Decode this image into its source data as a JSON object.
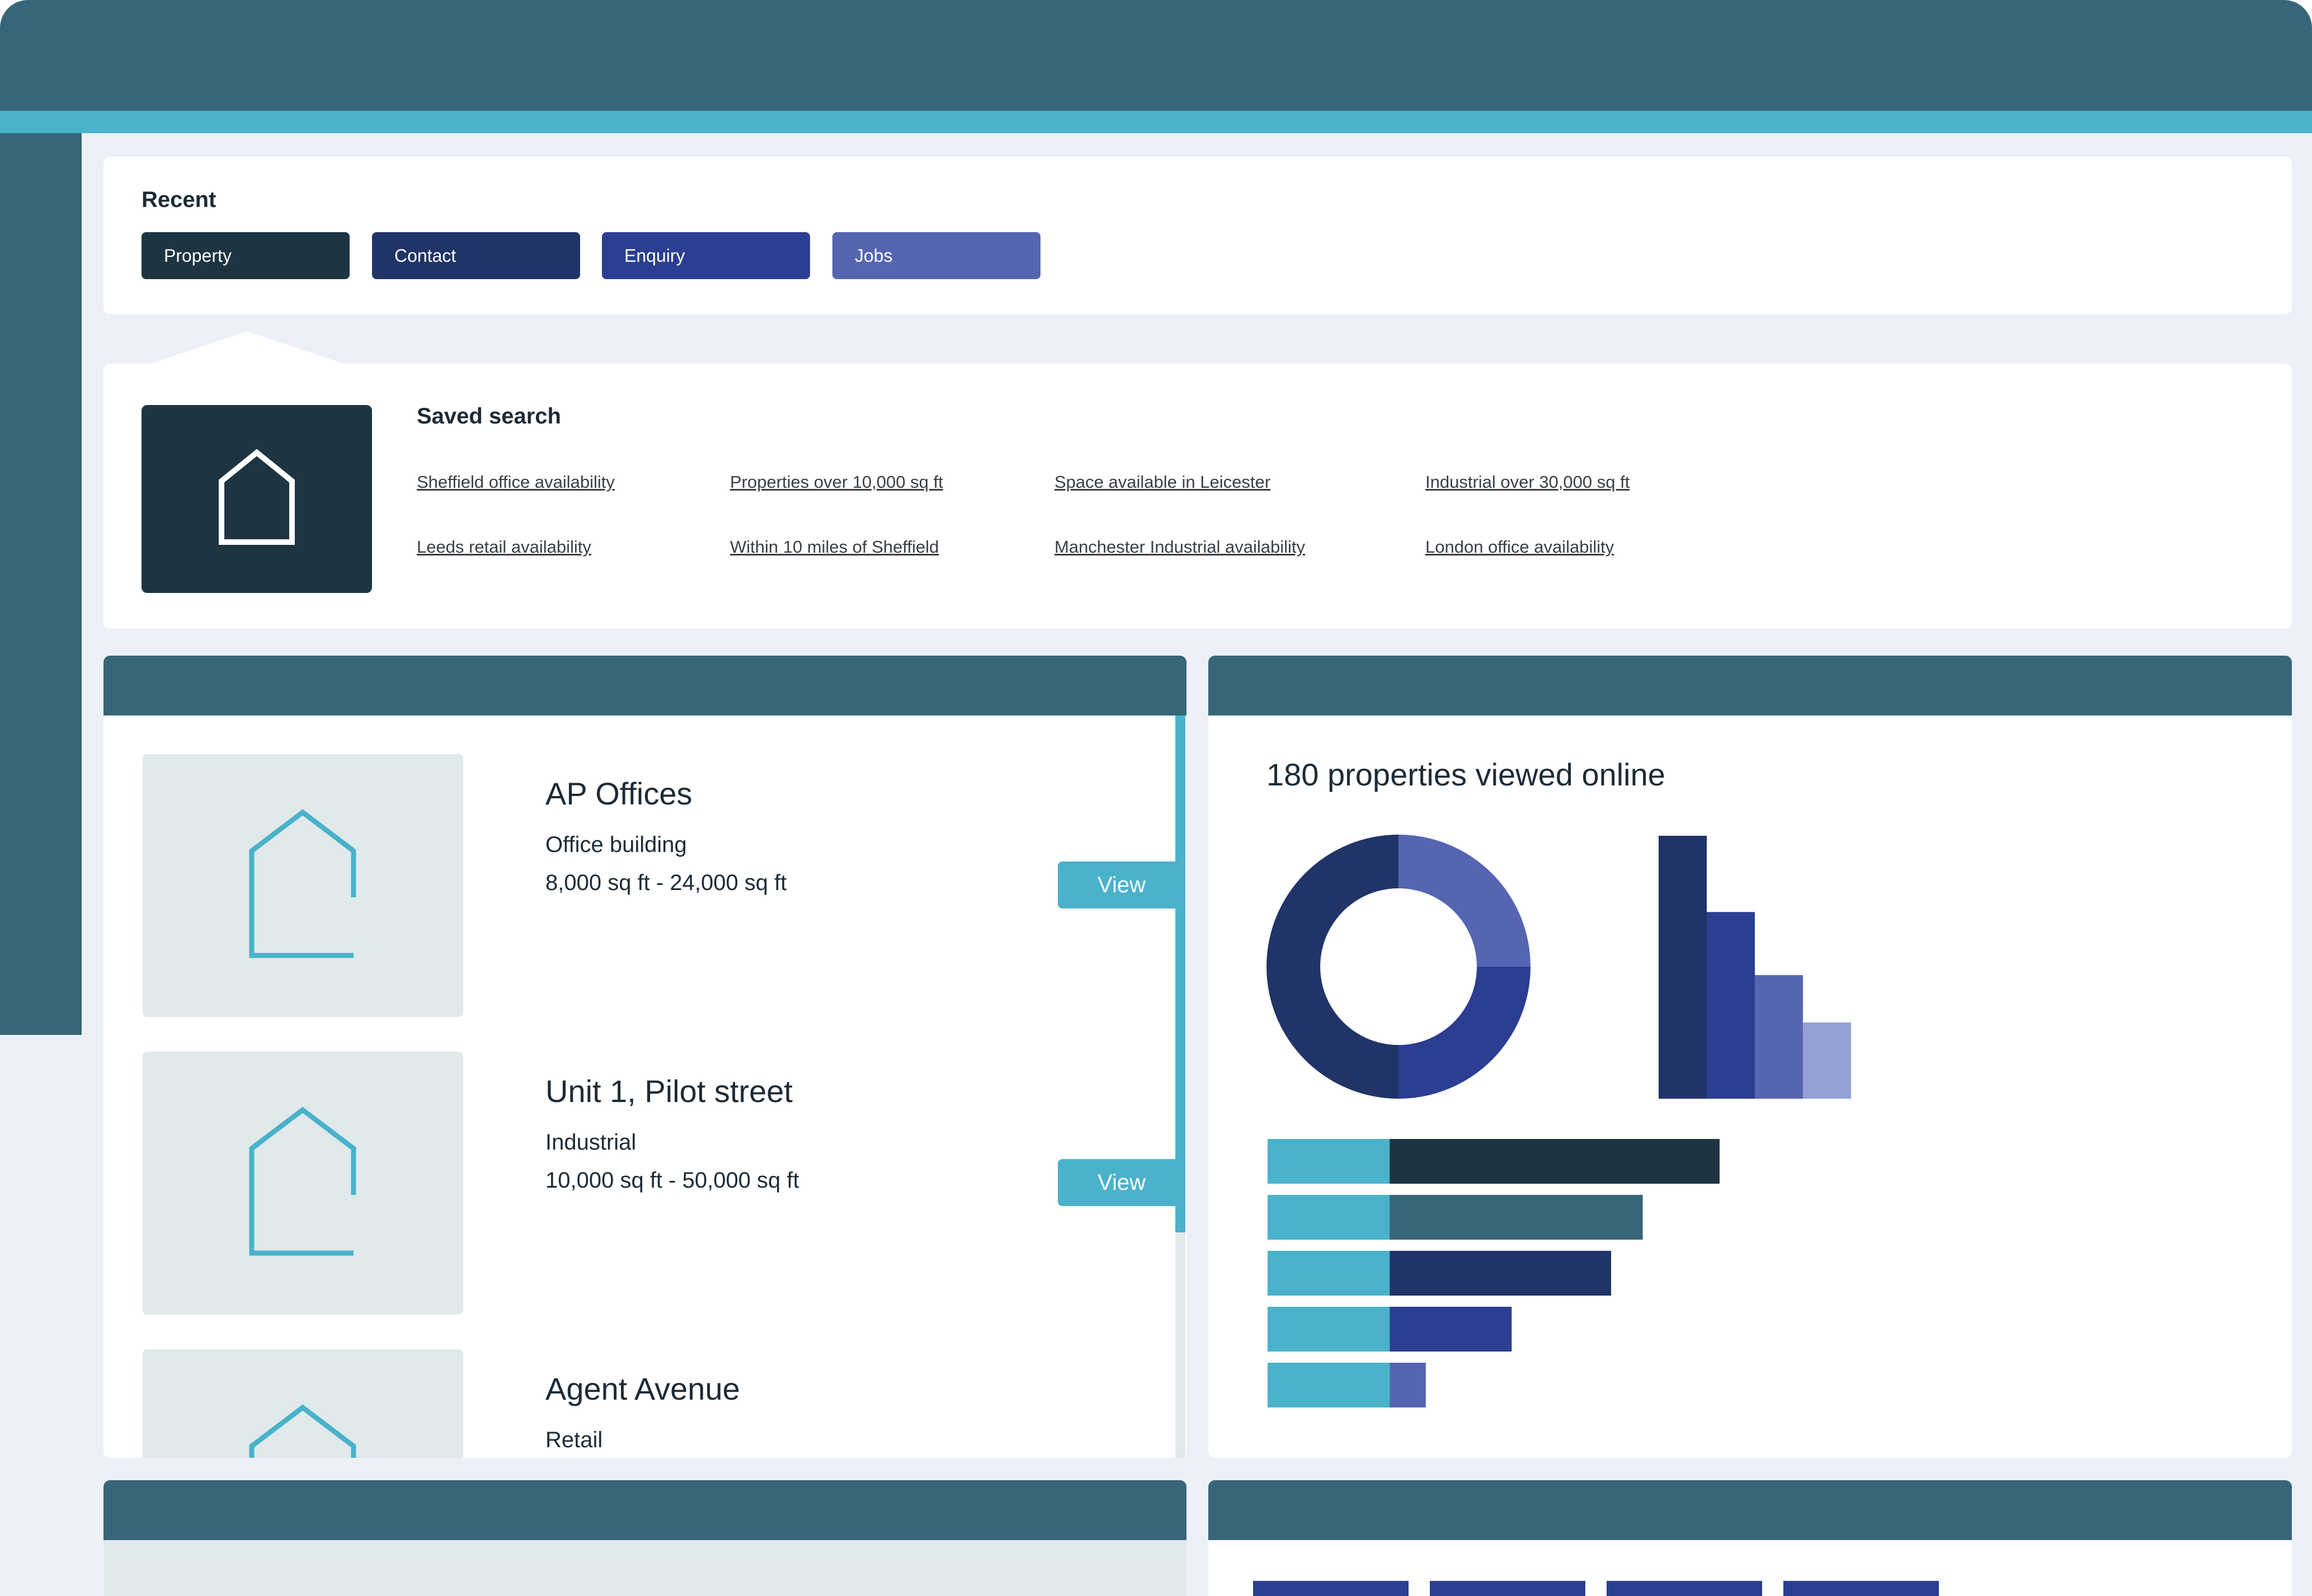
{
  "recent": {
    "heading": "Recent",
    "tabs": [
      {
        "label": "Property",
        "color": "#1e3541"
      },
      {
        "label": "Contact",
        "color": "#203467"
      },
      {
        "label": "Enquiry",
        "color": "#2c3e91"
      },
      {
        "label": "Jobs",
        "color": "#5565b1"
      }
    ]
  },
  "saved_search": {
    "heading": "Saved search",
    "thumb_icon": "house-icon",
    "links": [
      "Sheffield office availability",
      "Properties over 10,000 sq ft",
      "Space available in Leicester",
      "Industrial over 30,000 sq ft",
      "Leeds retail availability",
      "Within 10 miles of Sheffield",
      "Manchester Industrial availability",
      "London office availability"
    ]
  },
  "properties": {
    "items": [
      {
        "title": "AP Offices",
        "type": "Office building",
        "size": "8,000 sq ft - 24,000 sq ft",
        "button": "View"
      },
      {
        "title": "Unit 1, Pilot street",
        "type": "Industrial",
        "size": "10,000 sq ft - 50,000 sq ft",
        "button": "View"
      },
      {
        "title": "Agent Avenue",
        "type": "Retail"
      }
    ]
  },
  "stats": {
    "title": "180 properties viewed online"
  },
  "chart_data": [
    {
      "type": "pie",
      "values": [
        50,
        25,
        25
      ],
      "colors": [
        "#203467",
        "#2c3e91",
        "#5565b1"
      ],
      "donut": true
    },
    {
      "type": "bar",
      "values": [
        100,
        71,
        47,
        29
      ],
      "colors": [
        "#203467",
        "#2c3e91",
        "#5565b1",
        "#95a0d4"
      ],
      "ylim": [
        0,
        100
      ]
    },
    {
      "type": "bar",
      "orientation": "horizontal",
      "series": [
        {
          "values": [
            27,
            27,
            27,
            27,
            27
          ],
          "color": "#4ab2cb"
        },
        {
          "values": [
            73,
            56,
            49,
            27,
            8
          ]
        }
      ],
      "segment_colors": [
        "#1e3541",
        "#376678",
        "#203467",
        "#2c3e91",
        "#5565b1"
      ],
      "xlim": [
        0,
        100
      ]
    }
  ],
  "colors": {
    "primary": "#376678",
    "accent": "#4ab2cb",
    "background": "#edf0f7",
    "dark": "#1e3541"
  }
}
